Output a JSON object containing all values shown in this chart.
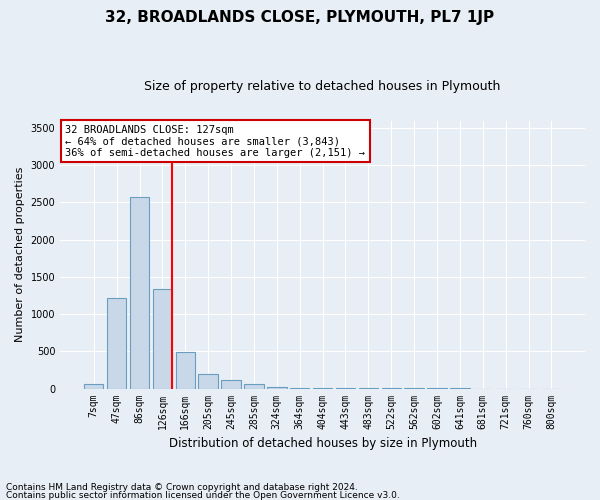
{
  "title": "32, BROADLANDS CLOSE, PLYMOUTH, PL7 1JP",
  "subtitle": "Size of property relative to detached houses in Plymouth",
  "xlabel": "Distribution of detached houses by size in Plymouth",
  "ylabel": "Number of detached properties",
  "categories": [
    "7sqm",
    "47sqm",
    "86sqm",
    "126sqm",
    "166sqm",
    "205sqm",
    "245sqm",
    "285sqm",
    "324sqm",
    "364sqm",
    "404sqm",
    "443sqm",
    "483sqm",
    "522sqm",
    "562sqm",
    "602sqm",
    "641sqm",
    "681sqm",
    "721sqm",
    "760sqm",
    "800sqm"
  ],
  "values": [
    55,
    1220,
    2570,
    1340,
    490,
    195,
    110,
    55,
    25,
    10,
    5,
    2,
    2,
    2,
    1,
    1,
    1,
    0,
    0,
    0,
    0
  ],
  "bar_color": "#c8d8e8",
  "bar_edge_color": "#6a9ec0",
  "red_line_index": 3,
  "annotation_line1": "32 BROADLANDS CLOSE: 127sqm",
  "annotation_line2": "← 64% of detached houses are smaller (3,843)",
  "annotation_line3": "36% of semi-detached houses are larger (2,151) →",
  "annotation_box_color": "#ffffff",
  "annotation_box_edge": "#cc0000",
  "footnote1": "Contains HM Land Registry data © Crown copyright and database right 2024.",
  "footnote2": "Contains public sector information licensed under the Open Government Licence v3.0.",
  "ylim": [
    0,
    3600
  ],
  "yticks": [
    0,
    500,
    1000,
    1500,
    2000,
    2500,
    3000,
    3500
  ],
  "background_color": "#e8eef5",
  "plot_background": "#e8eef5",
  "title_fontsize": 11,
  "subtitle_fontsize": 9,
  "ylabel_fontsize": 8,
  "xlabel_fontsize": 8.5,
  "tick_fontsize": 7,
  "footnote_fontsize": 6.5
}
